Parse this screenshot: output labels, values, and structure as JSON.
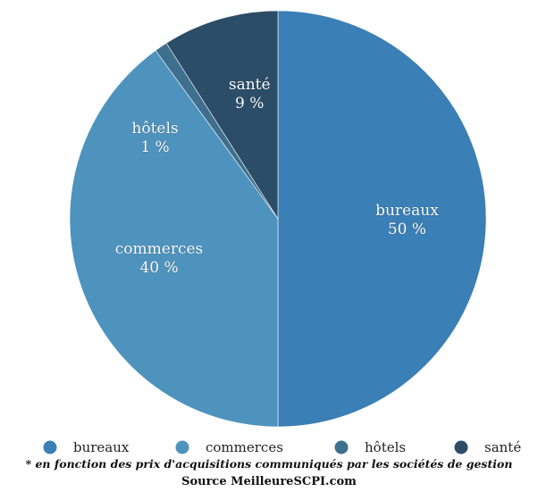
{
  "chart_data": {
    "type": "pie",
    "title": "",
    "categories": [
      "bureaux",
      "commerces",
      "hôtels",
      "santé"
    ],
    "values": [
      50,
      40,
      1,
      9
    ],
    "value_labels": [
      "50 %",
      "40 %",
      "1 %",
      "9 %"
    ],
    "unit": "%",
    "colors": [
      "#3a7fb5",
      "#4e93bd",
      "#3e6f8f",
      "#2b4d68"
    ],
    "start_angle_deg": 0,
    "direction": "clockwise",
    "legend": {
      "position": "bottom",
      "entries": [
        "bureaux",
        "commerces",
        "hôtels",
        "santé"
      ]
    }
  },
  "footnote": {
    "star": "*",
    "text": "en fonction des prix d'acquisitions communiqués par les sociétés de gestion",
    "source": "Source MeilleureSCPI.com"
  }
}
